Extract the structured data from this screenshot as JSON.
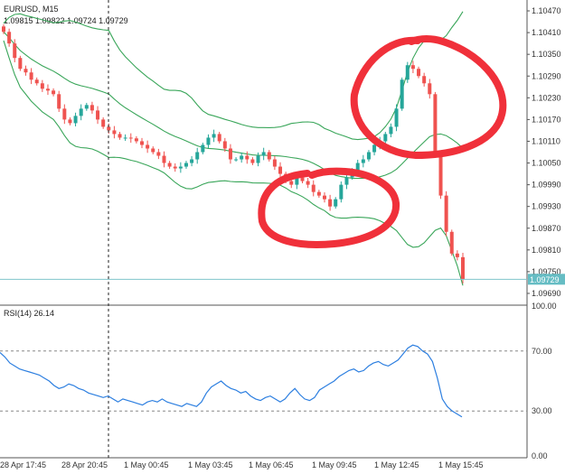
{
  "header": {
    "symbol_line": "EURUSD, M15",
    "ohlc_line": "1.09815 1.09822 1.09724 1.09729"
  },
  "price_axis": {
    "ticks": [
      "1.10470",
      "1.10410",
      "1.10350",
      "1.10290",
      "1.10230",
      "1.10170",
      "1.10110",
      "1.10050",
      "1.09990",
      "1.09930",
      "1.09870",
      "1.09810",
      "1.09750",
      "1.09690"
    ],
    "last_price_label": "1.09729"
  },
  "rsi": {
    "label": "RSI(14) 26.14",
    "ticks": [
      "100.00",
      "70.00",
      "30.00",
      "0.00"
    ]
  },
  "time_axis": {
    "labels": [
      "28 Apr 17:45",
      "28 Apr 20:45",
      "1 May 00:45",
      "1 May 03:45",
      "1 May 06:45",
      "1 May 09:45",
      "1 May 12:45",
      "1 May 15:45"
    ]
  },
  "colors": {
    "bull": "#26a69a",
    "bear": "#ef5350",
    "band": "#3aa65a",
    "rsi_line": "#2d7fe0",
    "last_price_line": "#7fc4cc",
    "last_price_tag": "#66bdc4",
    "annotation": "#f0303a"
  },
  "chart_data": [
    {
      "type": "candlestick",
      "title": "EURUSD, M15",
      "ylim": [
        1.0966,
        1.105
      ],
      "x_tick_labels": [
        "28 Apr 17:45",
        "28 Apr 20:45",
        "1 May 00:45",
        "1 May 03:45",
        "1 May 06:45",
        "1 May 09:45",
        "1 May 12:45",
        "1 May 15:45"
      ],
      "close_series": [
        1.10412,
        1.1038,
        1.1034,
        1.1031,
        1.103,
        1.1028,
        1.1027,
        1.10255,
        1.1025,
        1.1024,
        1.102,
        1.1017,
        1.1016,
        1.1018,
        1.102,
        1.1021,
        1.10195,
        1.1017,
        1.1015,
        1.1014,
        1.1013,
        1.1012,
        1.1012,
        1.10118,
        1.1011,
        1.101,
        1.1009,
        1.1008,
        1.1007,
        1.1005,
        1.1004,
        1.10035,
        1.1004,
        1.1005,
        1.1006,
        1.1008,
        1.101,
        1.1012,
        1.1013,
        1.1011,
        1.1009,
        1.1006,
        1.1006,
        1.1007,
        1.1006,
        1.1005,
        1.1007,
        1.1008,
        1.1006,
        1.1004,
        1.1002,
        1.1,
        1.0999,
        1.1001,
        1.1,
        1.0999,
        1.0997,
        1.0996,
        1.0995,
        1.0993,
        1.0995,
        1.0999,
        1.1001,
        1.1003,
        1.1005,
        1.1006,
        1.1008,
        1.101,
        1.1011,
        1.1013,
        1.1015,
        1.102,
        1.1028,
        1.1032,
        1.1031,
        1.1029,
        1.1027,
        1.1024,
        1.1007,
        1.0996,
        1.0986,
        1.098,
        1.0979,
        1.09729
      ],
      "bollinger": {
        "upper_at_end": 1.1042,
        "lower_min": 1.097
      },
      "last_price": 1.09729
    },
    {
      "type": "line",
      "title": "RSI(14) 26.14",
      "ylim": [
        0,
        100
      ],
      "reference_levels": [
        70,
        30
      ],
      "last_value": 26.14,
      "values": [
        69,
        66,
        62,
        60,
        58,
        57,
        56,
        55,
        54,
        52,
        50,
        47,
        45,
        46,
        48,
        47,
        45,
        44,
        42,
        41,
        40,
        39,
        40,
        38,
        36,
        38,
        37,
        36,
        35,
        34,
        36,
        37,
        36,
        38,
        36,
        35,
        34,
        33,
        35,
        34,
        33,
        36,
        42,
        46,
        48,
        50,
        47,
        45,
        44,
        42,
        43,
        40,
        38,
        37,
        39,
        40,
        38,
        36,
        38,
        42,
        45,
        41,
        38,
        37,
        39,
        44,
        46,
        48,
        50,
        53,
        55,
        57,
        58,
        56,
        57,
        60,
        62,
        63,
        61,
        60,
        62,
        64,
        68,
        72,
        74,
        73,
        70,
        68,
        63,
        52,
        38,
        33,
        30,
        28,
        26
      ]
    }
  ]
}
